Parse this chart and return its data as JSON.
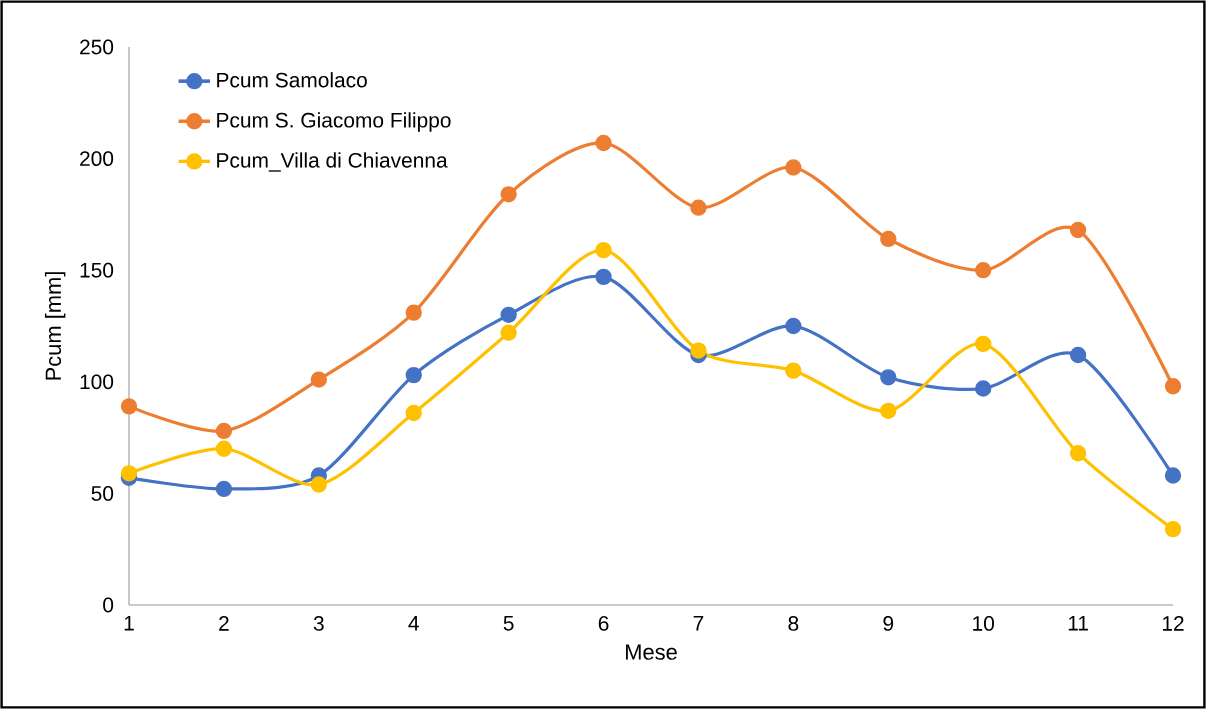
{
  "chart_data": {
    "type": "line",
    "xlabel": "Mese",
    "ylabel": "Pcum [mm]",
    "categories": [
      "1",
      "2",
      "3",
      "4",
      "5",
      "6",
      "7",
      "8",
      "9",
      "10",
      "11",
      "12"
    ],
    "series": [
      {
        "name": "Pcum Samolaco",
        "color": "#4472c4",
        "values": [
          57,
          52,
          58,
          103,
          130,
          147,
          112,
          125,
          102,
          97,
          112,
          58
        ]
      },
      {
        "name": "Pcum S. Giacomo Filippo",
        "color": "#ed7d31",
        "values": [
          89,
          78,
          101,
          131,
          184,
          207,
          178,
          196,
          164,
          150,
          168,
          98
        ]
      },
      {
        "name": "Pcum_Villa di Chiavenna",
        "color": "#ffc000",
        "values": [
          59,
          70,
          54,
          86,
          122,
          159,
          114,
          105,
          87,
          117,
          68,
          34
        ]
      }
    ],
    "ylim": [
      0,
      250
    ],
    "yticks": [
      0,
      50,
      100,
      150,
      200,
      250
    ],
    "grid": false,
    "legend": "top left",
    "marker": "circle",
    "line_style": "solid"
  }
}
